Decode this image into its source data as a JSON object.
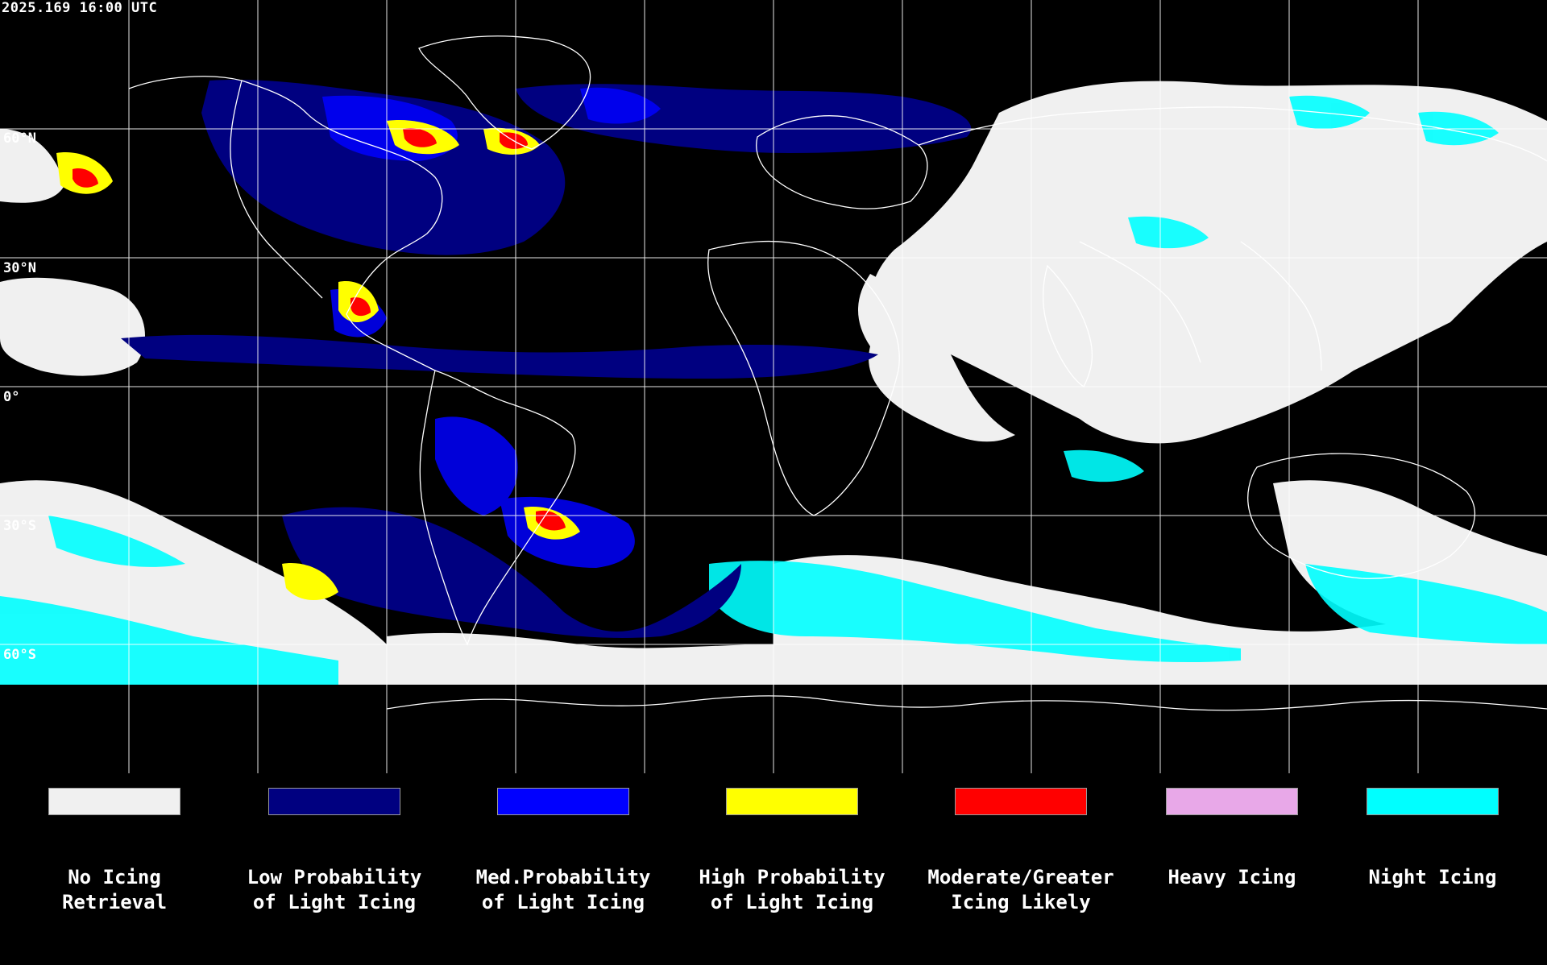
{
  "timestamp": "2025.169 16:00 UTC",
  "lat_labels": [
    "60°N",
    "30°N",
    "0°",
    "30°S",
    "60°S"
  ],
  "colors": {
    "no_icing": "#f0f0f0",
    "low": "#000080",
    "med": "#0000ff",
    "high": "#ffff00",
    "moderate": "#ff0000",
    "heavy": "#e8a8e8",
    "night": "#00ffff",
    "coast": "#ffffff",
    "grid": "#ffffff"
  },
  "legend": [
    {
      "line1": "No Icing",
      "line2": "Retrieval",
      "color": "#f0f0f0"
    },
    {
      "line1": "Low Probability",
      "line2": "of Light Icing",
      "color": "#000080"
    },
    {
      "line1": "Med.Probability",
      "line2": "of Light Icing",
      "color": "#0000ff"
    },
    {
      "line1": "High Probability",
      "line2": "of Light Icing",
      "color": "#ffff00"
    },
    {
      "line1": "Moderate/Greater",
      "line2": "Icing Likely",
      "color": "#ff0000"
    },
    {
      "line1": "Heavy Icing",
      "line2": "",
      "color": "#e8a8e8"
    },
    {
      "line1": "Night Icing",
      "line2": "",
      "color": "#00ffff"
    }
  ]
}
